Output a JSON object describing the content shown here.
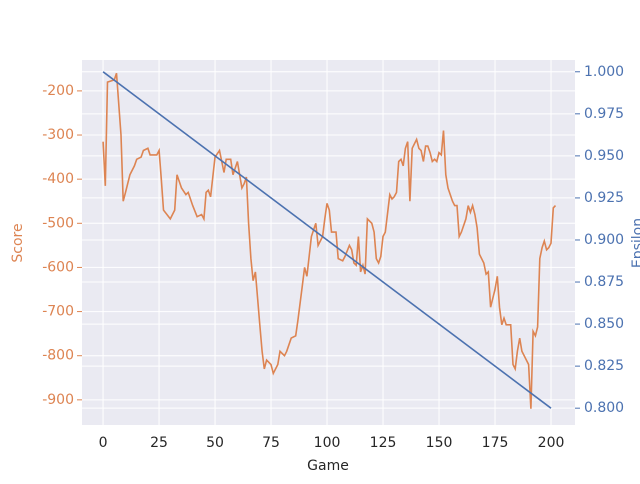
{
  "chart_data": {
    "type": "line",
    "xlabel": "Game",
    "ylabel": "Score",
    "y2label": "Epsilon",
    "xlim": [
      -9.4,
      210.7
    ],
    "ylim": [
      -957,
      -130
    ],
    "y2lim": [
      0.79,
      1.007
    ],
    "xticks": [
      0,
      25,
      50,
      75,
      100,
      125,
      150,
      175,
      200
    ],
    "yticks": [
      -900,
      -800,
      -700,
      -600,
      -500,
      -400,
      -300,
      -200
    ],
    "y2ticks": [
      {
        "value": 0.8,
        "label": "0.800"
      },
      {
        "value": 0.825,
        "label": "0.825"
      },
      {
        "value": 0.85,
        "label": "0.850"
      },
      {
        "value": 0.875,
        "label": "0.875"
      },
      {
        "value": 0.9,
        "label": "0.900"
      },
      {
        "value": 0.925,
        "label": "0.925"
      },
      {
        "value": 0.95,
        "label": "0.950"
      },
      {
        "value": 0.975,
        "label": "0.975"
      },
      {
        "value": 1,
        "label": "1.000"
      }
    ],
    "grid": true,
    "series": [
      {
        "name": "Score",
        "color": "#dd8452",
        "axis": "y",
        "x": [
          0,
          1,
          2,
          5,
          6,
          8,
          9,
          10,
          12,
          14,
          15,
          17,
          18,
          20,
          21,
          24,
          25,
          26,
          27,
          30,
          32,
          33,
          35,
          37,
          38,
          40,
          42,
          44,
          45,
          46,
          47,
          48,
          50,
          52,
          54,
          55,
          57,
          58,
          60,
          62,
          63,
          64,
          65,
          66,
          67,
          68,
          69,
          70,
          71,
          72,
          73,
          75,
          76,
          78,
          79,
          80,
          81,
          82,
          84,
          86,
          87,
          89,
          90,
          91,
          93,
          94,
          95,
          96,
          98,
          99,
          100,
          101,
          102,
          104,
          105,
          107,
          108,
          110,
          111,
          112,
          113,
          114,
          115,
          116,
          117,
          118,
          120,
          121,
          122,
          123,
          124,
          125,
          126,
          128,
          129,
          130,
          131,
          132,
          133,
          134,
          135,
          136,
          137,
          138,
          140,
          141,
          142,
          143,
          144,
          145,
          146,
          147,
          148,
          149,
          150,
          151,
          152,
          153,
          154,
          156,
          157,
          158,
          159,
          160,
          162,
          163,
          164,
          165,
          166,
          167,
          168,
          170,
          171,
          172,
          173,
          174,
          175,
          176,
          177,
          178,
          179,
          180,
          182,
          183,
          184,
          185,
          186,
          187,
          188,
          189,
          190,
          191,
          192,
          193,
          194,
          195,
          196,
          197,
          198,
          199,
          200,
          201,
          202
        ],
        "values": [
          -315,
          -415,
          -180,
          -175,
          -160,
          -300,
          -450,
          -430,
          -390,
          -370,
          -355,
          -350,
          -335,
          -330,
          -345,
          -345,
          -335,
          -400,
          -470,
          -490,
          -470,
          -390,
          -420,
          -435,
          -430,
          -460,
          -485,
          -480,
          -490,
          -430,
          -425,
          -440,
          -350,
          -335,
          -385,
          -355,
          -355,
          -390,
          -360,
          -420,
          -410,
          -395,
          -500,
          -580,
          -630,
          -610,
          -670,
          -730,
          -790,
          -830,
          -810,
          -820,
          -840,
          -820,
          -790,
          -795,
          -800,
          -790,
          -760,
          -755,
          -720,
          -640,
          -600,
          -620,
          -530,
          -515,
          -500,
          -550,
          -530,
          -490,
          -455,
          -470,
          -520,
          -520,
          -580,
          -585,
          -575,
          -550,
          -560,
          -590,
          -595,
          -530,
          -610,
          -595,
          -615,
          -490,
          -500,
          -520,
          -580,
          -590,
          -575,
          -530,
          -520,
          -435,
          -445,
          -440,
          -430,
          -360,
          -355,
          -370,
          -330,
          -315,
          -450,
          -330,
          -310,
          -330,
          -335,
          -360,
          -325,
          -325,
          -340,
          -360,
          -355,
          -360,
          -340,
          -345,
          -290,
          -390,
          -420,
          -450,
          -460,
          -460,
          -530,
          -520,
          -490,
          -460,
          -475,
          -460,
          -480,
          -510,
          -570,
          -590,
          -615,
          -610,
          -690,
          -670,
          -650,
          -620,
          -690,
          -730,
          -715,
          -730,
          -730,
          -820,
          -830,
          -790,
          -760,
          -790,
          -800,
          -810,
          -820,
          -920,
          -745,
          -755,
          -735,
          -580,
          -555,
          -540,
          -560,
          -555,
          -545,
          -465,
          -460
        ]
      },
      {
        "name": "Epsilon",
        "color": "#4c72b0",
        "axis": "y2",
        "x": [
          0,
          200
        ],
        "values": [
          1.0,
          0.8
        ]
      }
    ]
  }
}
